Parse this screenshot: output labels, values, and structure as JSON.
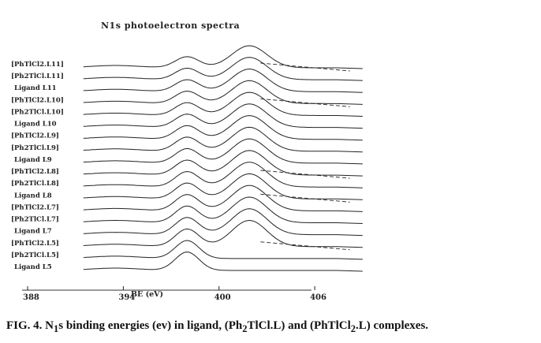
{
  "chart_data": {
    "type": "line",
    "title": "N1s photoelectron spectra",
    "xlabel": "BE (eV)",
    "ylabel": "",
    "x_ticks": [
      "388",
      "394",
      "400",
      "406"
    ],
    "xlim": [
      388,
      410
    ],
    "series": [
      {
        "name": "[PhTlCl2.L11]",
        "peaks": [
          398.0,
          401.9
        ],
        "shoulder": true
      },
      {
        "name": "[Ph2TlCl.L11]",
        "peaks": [
          398.0,
          401.9
        ],
        "shoulder": false
      },
      {
        "name": "Ligand L11",
        "peaks": [
          398.0,
          401.9
        ],
        "shoulder": false
      },
      {
        "name": "[PhTlCl2.L10]",
        "peaks": [
          398.0,
          401.9
        ],
        "shoulder": true
      },
      {
        "name": "[Ph2TlCl.L10]",
        "peaks": [
          398.0,
          401.9
        ],
        "shoulder": false
      },
      {
        "name": "Ligand L10",
        "peaks": [
          398.0,
          401.9
        ],
        "shoulder": false
      },
      {
        "name": "[PhTlCl2.L9]",
        "peaks": [
          398.0,
          401.9
        ],
        "shoulder": false
      },
      {
        "name": "[Ph2TlCl.L9]",
        "peaks": [
          398.0,
          401.9
        ],
        "shoulder": false
      },
      {
        "name": "Ligand L9",
        "peaks": [
          398.0,
          401.9
        ],
        "shoulder": false
      },
      {
        "name": "[PhTlCl2.L8]",
        "peaks": [
          398.0,
          401.9
        ],
        "shoulder": true
      },
      {
        "name": "[Ph2TlCl.L8]",
        "peaks": [
          398.0,
          401.9
        ],
        "shoulder": false
      },
      {
        "name": "Ligand L8",
        "peaks": [
          398.0,
          401.9
        ],
        "shoulder": true
      },
      {
        "name": "[PhTlCl2.L7]",
        "peaks": [
          398.0,
          401.9
        ],
        "shoulder": false
      },
      {
        "name": "[Ph2TlCl.L7]",
        "peaks": [
          398.0,
          401.9
        ],
        "shoulder": false
      },
      {
        "name": "Ligand L7",
        "peaks": [
          398.0,
          401.9
        ],
        "shoulder": false
      },
      {
        "name": "[PhTlCl2.L5]",
        "peaks": [
          398.0,
          401.9
        ],
        "shoulder": true
      },
      {
        "name": "[Ph2TlCl.L5]",
        "peaks": [
          398.0
        ],
        "shoulder": false
      },
      {
        "name": "Ligand L5",
        "peaks": [
          398.0
        ],
        "shoulder": false
      }
    ],
    "grid": false,
    "legend": "none (labels at left of each trace)"
  },
  "caption": {
    "prefix": "FIG. 4. N",
    "sub1": "1",
    "mid": "s binding energies (ev) in ligand, (Ph",
    "sub2": "2",
    "mid2": "TlCl.L) and (PhTlCl",
    "sub3": "2",
    "suffix": ".L) complexes."
  },
  "colors": {
    "ink": "#222222",
    "background": "#ffffff"
  }
}
